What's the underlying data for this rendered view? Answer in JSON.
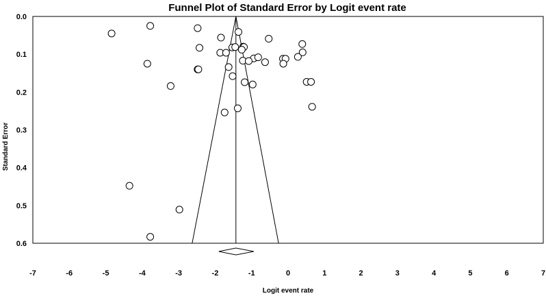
{
  "chart_data": {
    "type": "scatter",
    "title": "Funnel Plot of Standard Error by Logit event rate",
    "xlabel": "Logit event rate",
    "ylabel": "Standard Error",
    "xlim": [
      -7,
      7
    ],
    "ylim": [
      0.6,
      0.0
    ],
    "y_inverted": true,
    "grid": false,
    "x_ticks": [
      -7,
      -6,
      -5,
      -4,
      -3,
      -2,
      -1,
      0,
      1,
      2,
      3,
      4,
      5,
      6,
      7
    ],
    "x_tick_labels": [
      "-7",
      "-6",
      "-5",
      "-4",
      "-3",
      "-2",
      "-1",
      "0",
      "1",
      "2",
      "3",
      "4",
      "5",
      "6",
      "7"
    ],
    "y_ticks": [
      0.0,
      0.1,
      0.2,
      0.3,
      0.4,
      0.5,
      0.6
    ],
    "y_tick_labels": [
      "0.0",
      "0.1",
      "0.2",
      "0.3",
      "0.4",
      "0.5",
      "0.6"
    ],
    "summary_estimate": -1.43,
    "summary_diamond": {
      "lower": -1.9,
      "upper": -0.94
    },
    "funnel_limits": {
      "left_at_max_se": -2.63,
      "right_at_max_se": -0.26,
      "max_se": 0.6
    },
    "points": [
      {
        "x": -4.84,
        "y": 0.045
      },
      {
        "x": -3.78,
        "y": 0.025
      },
      {
        "x": -2.48,
        "y": 0.031
      },
      {
        "x": -1.84,
        "y": 0.056
      },
      {
        "x": -1.36,
        "y": 0.041
      },
      {
        "x": -0.53,
        "y": 0.059
      },
      {
        "x": 0.39,
        "y": 0.073
      },
      {
        "x": -2.43,
        "y": 0.083
      },
      {
        "x": -1.53,
        "y": 0.082
      },
      {
        "x": -1.45,
        "y": 0.081
      },
      {
        "x": -1.23,
        "y": 0.08
      },
      {
        "x": -1.21,
        "y": 0.081
      },
      {
        "x": -1.27,
        "y": 0.088
      },
      {
        "x": -1.86,
        "y": 0.096
      },
      {
        "x": -1.7,
        "y": 0.096
      },
      {
        "x": 0.4,
        "y": 0.095
      },
      {
        "x": -0.94,
        "y": 0.111
      },
      {
        "x": -0.82,
        "y": 0.108
      },
      {
        "x": -0.14,
        "y": 0.112
      },
      {
        "x": -0.07,
        "y": 0.112
      },
      {
        "x": 0.27,
        "y": 0.107
      },
      {
        "x": -1.24,
        "y": 0.117
      },
      {
        "x": -1.08,
        "y": 0.118
      },
      {
        "x": -0.63,
        "y": 0.121
      },
      {
        "x": -0.13,
        "y": 0.125
      },
      {
        "x": -3.86,
        "y": 0.125
      },
      {
        "x": -1.63,
        "y": 0.134
      },
      {
        "x": -2.48,
        "y": 0.14
      },
      {
        "x": -2.46,
        "y": 0.14
      },
      {
        "x": -1.52,
        "y": 0.158
      },
      {
        "x": -1.19,
        "y": 0.174
      },
      {
        "x": -0.97,
        "y": 0.18
      },
      {
        "x": 0.51,
        "y": 0.173
      },
      {
        "x": 0.63,
        "y": 0.173
      },
      {
        "x": -3.22,
        "y": 0.184
      },
      {
        "x": 0.66,
        "y": 0.239
      },
      {
        "x": -1.38,
        "y": 0.243
      },
      {
        "x": -1.74,
        "y": 0.254
      },
      {
        "x": -4.35,
        "y": 0.448
      },
      {
        "x": -2.98,
        "y": 0.511
      },
      {
        "x": -3.78,
        "y": 0.583
      }
    ],
    "colors": {
      "axis": "#000000",
      "marker_stroke": "#000000",
      "marker_fill": "#ffffff",
      "background": "#ffffff"
    }
  }
}
